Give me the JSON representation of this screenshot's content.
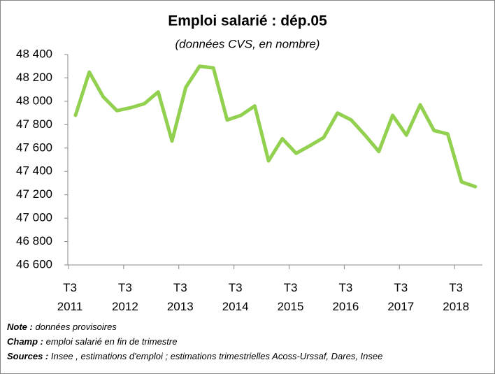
{
  "chart_data": {
    "type": "line",
    "title": "Emploi salarié : dép.05",
    "subtitle": "(données CVS, en nombre)",
    "categories": [
      "T3\n2011",
      null,
      null,
      null,
      "T3\n2012",
      null,
      null,
      null,
      "T3\n2013",
      null,
      null,
      null,
      "T3\n2014",
      null,
      null,
      null,
      "T3\n2015",
      null,
      null,
      null,
      "T3\n2016",
      null,
      null,
      null,
      "T3\n2017",
      null,
      null,
      null,
      "T3\n2018",
      null
    ],
    "series": [
      {
        "name": "Emploi salarié",
        "color": "#92d050",
        "values": [
          47880,
          48250,
          48040,
          47920,
          47945,
          47980,
          48080,
          47660,
          48120,
          48300,
          48285,
          47840,
          47880,
          47960,
          47490,
          47680,
          47555,
          47620,
          47690,
          47900,
          47840,
          47710,
          47570,
          47880,
          47710,
          47970,
          47750,
          47720,
          47310,
          47270
        ]
      }
    ],
    "ylim": [
      46600,
      48400
    ],
    "yticks": [
      {
        "value": 46600,
        "label": "46 600"
      },
      {
        "value": 46800,
        "label": "46 800"
      },
      {
        "value": 47000,
        "label": "47 000"
      },
      {
        "value": 47200,
        "label": "47 200"
      },
      {
        "value": 47400,
        "label": "47 400"
      },
      {
        "value": 47600,
        "label": "47 600"
      },
      {
        "value": 47800,
        "label": "47 800"
      },
      {
        "value": 48000,
        "label": "48 000"
      },
      {
        "value": 48200,
        "label": "48 200"
      },
      {
        "value": 48400,
        "label": "48 400"
      }
    ],
    "grid": false,
    "notes": [
      {
        "label": "Note :",
        "text": " données provisoires"
      },
      {
        "label": "Champ :",
        "text": " emploi salarié en fin de trimestre"
      },
      {
        "label": "Sources :",
        "text": " Insee , estimations d'emploi ; estimations trimestrielles Acoss-Urssaf, Dares, Insee"
      }
    ]
  }
}
